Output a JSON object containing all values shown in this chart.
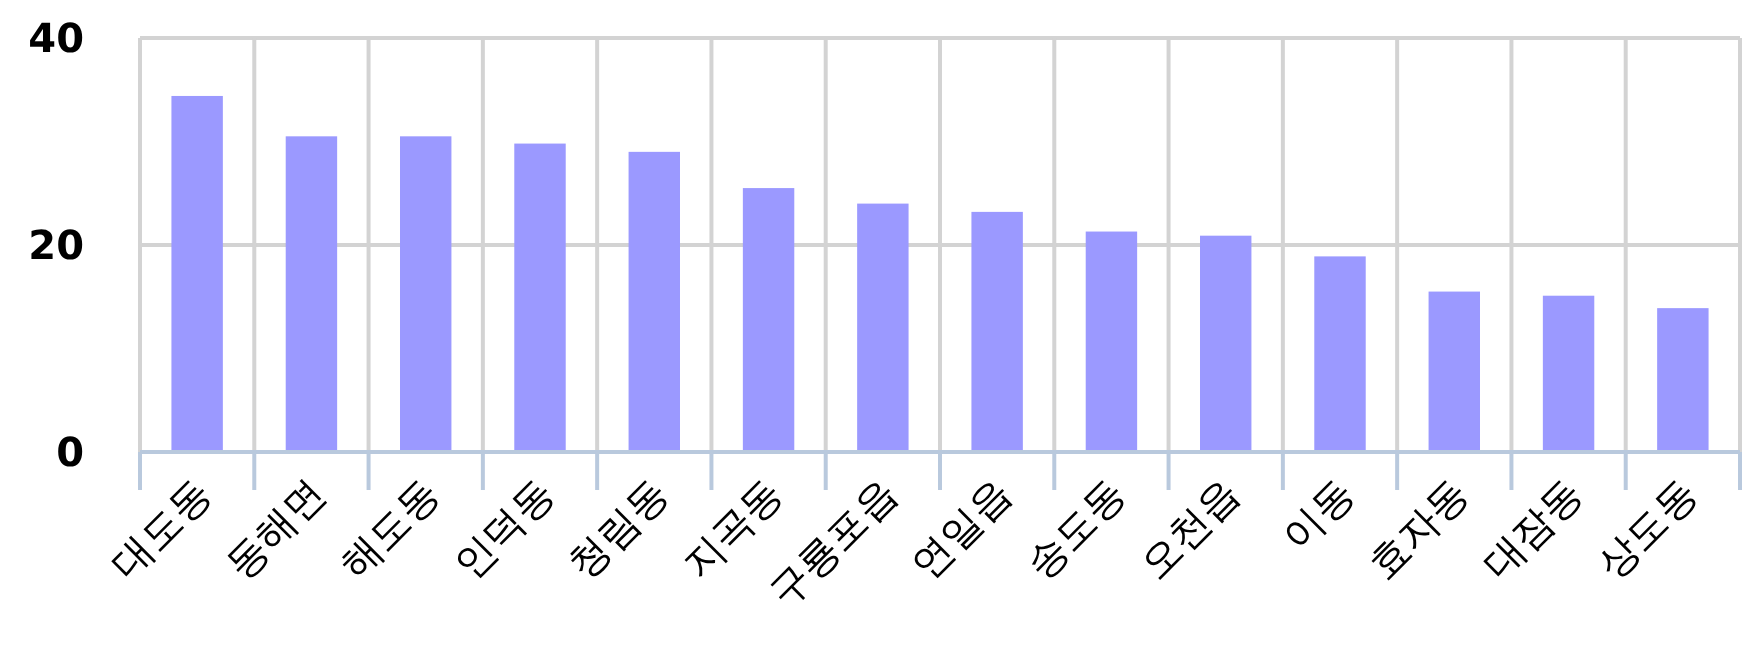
{
  "chart_data": {
    "type": "bar",
    "categories": [
      "대도동",
      "동해면",
      "해도동",
      "인덕동",
      "청림동",
      "지곡동",
      "구룡포읍",
      "연일읍",
      "송도동",
      "오천읍",
      "이동",
      "효자동",
      "대잠동",
      "상도동"
    ],
    "values": [
      34.4,
      30.5,
      30.5,
      29.8,
      29.0,
      25.5,
      24.0,
      23.2,
      21.3,
      20.9,
      18.9,
      15.5,
      15.1,
      13.9
    ],
    "color": "#9b99ff",
    "ylim": [
      0,
      40
    ],
    "yticks": [
      0,
      20,
      40
    ],
    "grid": true
  }
}
